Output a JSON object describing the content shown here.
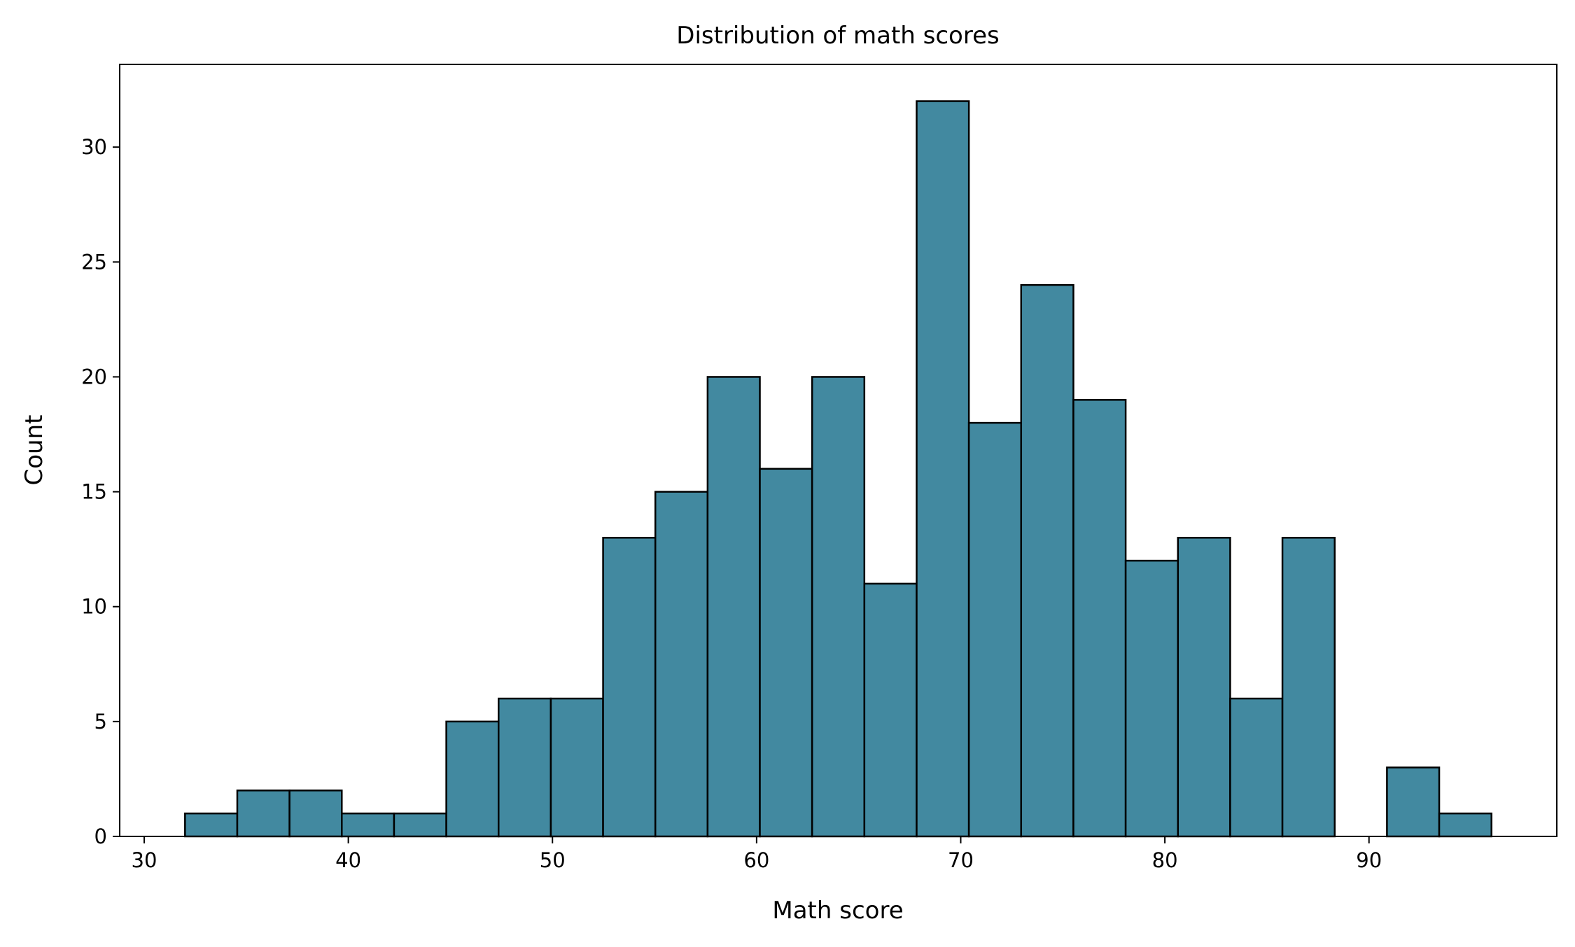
{
  "chart_data": {
    "type": "bar",
    "title": "Distribution of math scores",
    "xlabel": "Math score",
    "ylabel": "Count",
    "bin_edges": [
      32.0,
      34.56,
      37.12,
      39.68,
      42.24,
      44.8,
      47.36,
      49.92,
      52.48,
      55.04,
      57.6,
      60.16,
      62.72,
      65.28,
      67.84,
      70.4,
      72.96,
      75.52,
      78.08,
      80.64,
      83.2,
      85.76,
      88.32,
      90.88,
      93.44,
      96.0
    ],
    "values": [
      1,
      2,
      2,
      1,
      1,
      5,
      6,
      6,
      13,
      15,
      20,
      16,
      20,
      11,
      32,
      18,
      24,
      19,
      12,
      13,
      6,
      13,
      0,
      3,
      1
    ],
    "xlim": [
      28.8,
      99.2
    ],
    "ylim": [
      0,
      33.6
    ],
    "xticks": [
      30,
      40,
      50,
      60,
      70,
      80,
      90
    ],
    "yticks": [
      0,
      5,
      10,
      15,
      20,
      25,
      30
    ],
    "grid": false,
    "colors": {
      "bar_fill": "#4289a0",
      "bar_edge": "#000000"
    }
  }
}
